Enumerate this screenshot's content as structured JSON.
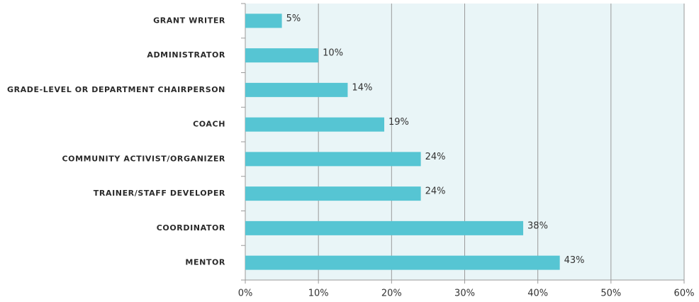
{
  "chart_data": {
    "type": "bar",
    "orientation": "horizontal",
    "categories": [
      "GRANT WRITER",
      "ADMINISTRATOR",
      "GRADE-LEVEL OR DEPARTMENT CHAIRPERSON",
      "COACH",
      "COMMUNITY ACTIVIST/ORGANIZER",
      "TRAINER/STAFF DEVELOPER",
      "COORDINATOR",
      "MENTOR"
    ],
    "values": [
      5,
      10,
      14,
      19,
      24,
      24,
      38,
      43
    ],
    "value_labels": [
      "5%",
      "10%",
      "14%",
      "19%",
      "24%",
      "24%",
      "38%",
      "43%"
    ],
    "color": "#56c5d3",
    "xlim": [
      0,
      60
    ],
    "xticks": [
      {
        "value": 0,
        "label": "0%"
      },
      {
        "value": 10,
        "label": "10%"
      },
      {
        "value": 20,
        "label": "20%"
      },
      {
        "value": 30,
        "label": "30%"
      },
      {
        "value": 40,
        "label": "40%"
      },
      {
        "value": 50,
        "label": "50%"
      },
      {
        "value": 60,
        "label": "60%"
      }
    ],
    "grid": true
  }
}
